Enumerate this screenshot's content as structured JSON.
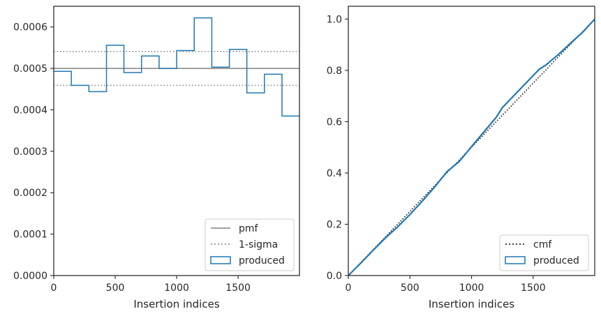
{
  "chart_data": [
    {
      "type": "line",
      "xlabel": "Insertion indices",
      "ylabel": "",
      "xlim": [
        0,
        1999
      ],
      "ylim": [
        0,
        0.00065
      ],
      "xticks": [
        0,
        500,
        1000,
        1500
      ],
      "xtick_labels": [
        "0",
        "500",
        "1000",
        "1500"
      ],
      "yticks": [
        0,
        0.0001,
        0.0002,
        0.0003,
        0.0004,
        0.0005,
        0.0006
      ],
      "ytick_labels": [
        "0.0000",
        "0.0001",
        "0.0002",
        "0.0003",
        "0.0004",
        "0.0005",
        "0.0006"
      ],
      "grid": false,
      "legend_position": "bottom-right",
      "series": [
        {
          "name": "pmf",
          "kind": "hline",
          "y": 0.0005,
          "color": "#808080",
          "style": "solid"
        },
        {
          "name": "1-sigma",
          "kind": "hlines",
          "y": [
            0.000459,
            0.000541
          ],
          "color": "#808080",
          "style": "dotted"
        },
        {
          "name": "produced",
          "kind": "step-hist",
          "color": "#1f77b4",
          "bin_edges": [
            0,
            143,
            286,
            429,
            571,
            714,
            857,
            1000,
            1143,
            1286,
            1429,
            1571,
            1714,
            1857,
            1999
          ],
          "values": [
            0.000493,
            0.000459,
            0.000444,
            0.000556,
            0.00049,
            0.00053,
            0.0005,
            0.000543,
            0.000622,
            0.000503,
            0.000546,
            0.000441,
            0.000486,
            0.000385
          ]
        }
      ]
    },
    {
      "type": "line",
      "xlabel": "Insertion indices",
      "ylabel": "",
      "xlim": [
        0,
        1999
      ],
      "ylim": [
        0,
        1.05
      ],
      "xticks": [
        0,
        500,
        1000,
        1500
      ],
      "xtick_labels": [
        "0",
        "500",
        "1000",
        "1500"
      ],
      "yticks": [
        0,
        0.2,
        0.4,
        0.6,
        0.8,
        1.0
      ],
      "ytick_labels": [
        "0.0",
        "0.2",
        "0.4",
        "0.6",
        "0.8",
        "1.0"
      ],
      "grid": false,
      "legend_position": "bottom-right",
      "series": [
        {
          "name": "cmf",
          "kind": "line",
          "x": [
            0,
            1999
          ],
          "y": [
            0,
            1.0
          ],
          "color": "#000000",
          "style": "dotted"
        },
        {
          "name": "produced",
          "kind": "line",
          "color": "#1f77b4",
          "x": [
            0,
            100,
            200,
            300,
            400,
            500,
            600,
            700,
            800,
            900,
            1000,
            1100,
            1200,
            1250,
            1300,
            1400,
            1500,
            1550,
            1600,
            1700,
            1800,
            1900,
            1999
          ],
          "y": [
            0,
            0.048,
            0.098,
            0.146,
            0.19,
            0.238,
            0.29,
            0.345,
            0.405,
            0.445,
            0.503,
            0.56,
            0.617,
            0.655,
            0.68,
            0.73,
            0.78,
            0.805,
            0.82,
            0.86,
            0.905,
            0.948,
            1.0
          ]
        }
      ]
    }
  ],
  "legends": [
    [
      {
        "label": "pmf",
        "swatch": "line",
        "color": "#808080",
        "dash": ""
      },
      {
        "label": "1-sigma",
        "swatch": "line",
        "color": "#808080",
        "dash": "2,3"
      },
      {
        "label": "produced",
        "swatch": "box",
        "color": "#1f77b4",
        "dash": ""
      }
    ],
    [
      {
        "label": "cmf",
        "swatch": "line",
        "color": "#000000",
        "dash": "2,3"
      },
      {
        "label": "produced",
        "swatch": "box",
        "color": "#1f77b4",
        "dash": ""
      }
    ]
  ]
}
